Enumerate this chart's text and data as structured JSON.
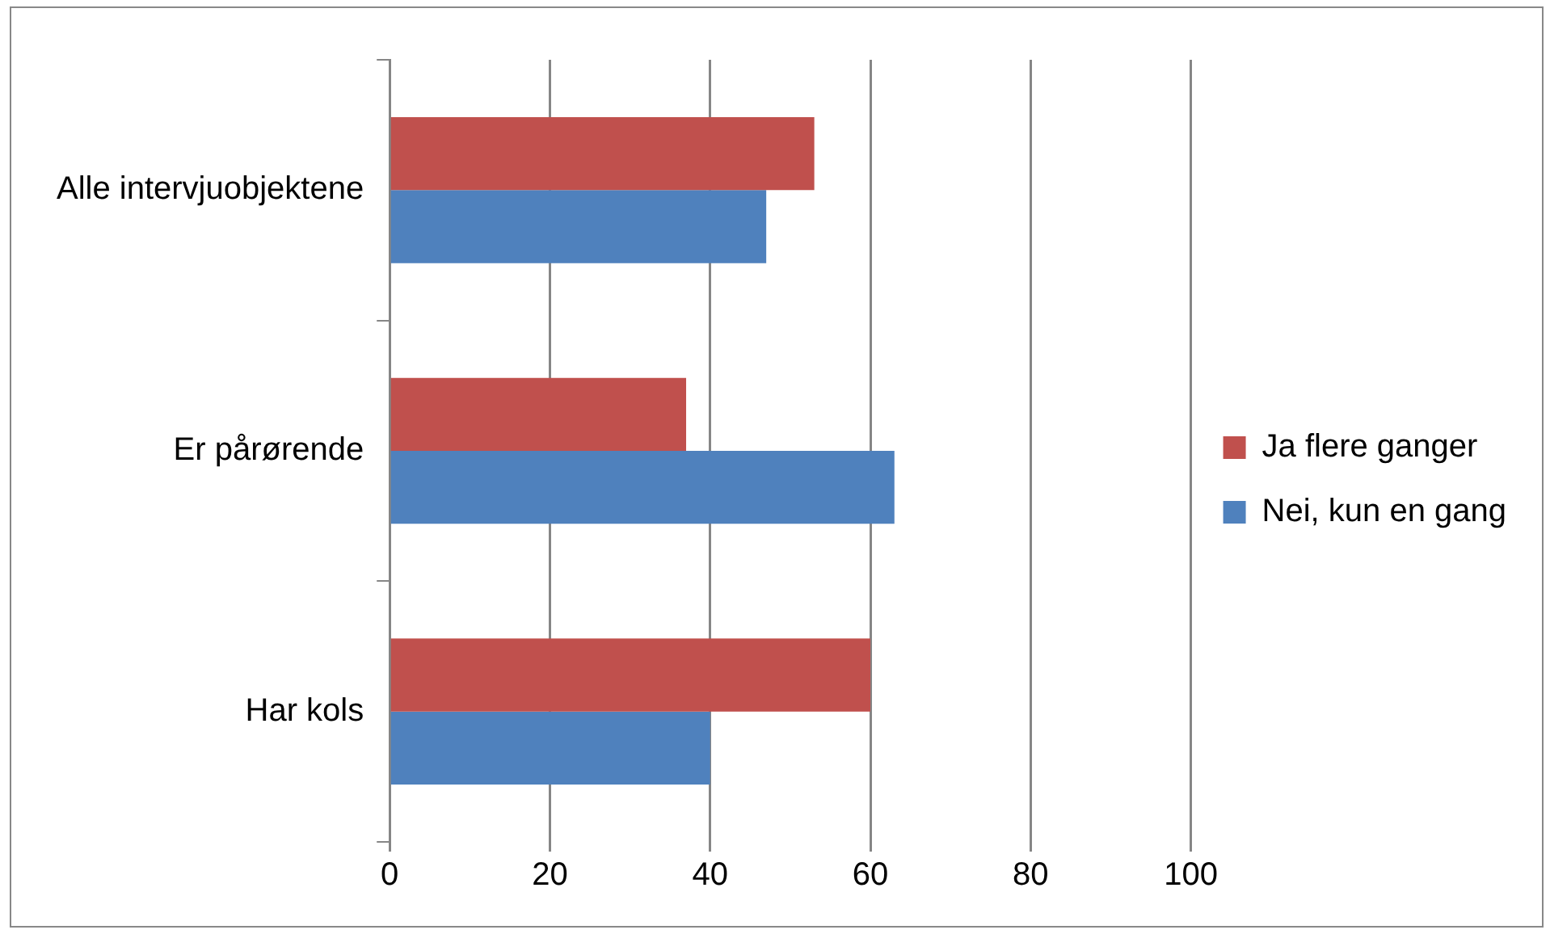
{
  "chart_data": {
    "type": "bar",
    "orientation": "horizontal",
    "categories": [
      "Alle intervjuobjektene",
      "Er pårørende",
      "Har kols"
    ],
    "series": [
      {
        "name": "Ja flere ganger",
        "color": "#c0504d",
        "values": [
          53,
          37,
          60
        ]
      },
      {
        "name": "Nei, kun en gang",
        "color": "#4f81bd",
        "values": [
          47,
          63,
          40
        ]
      }
    ],
    "xlim": [
      0,
      100
    ],
    "xticks": [
      0,
      20,
      40,
      60,
      80,
      100
    ],
    "grid": "x",
    "legend": "right"
  }
}
